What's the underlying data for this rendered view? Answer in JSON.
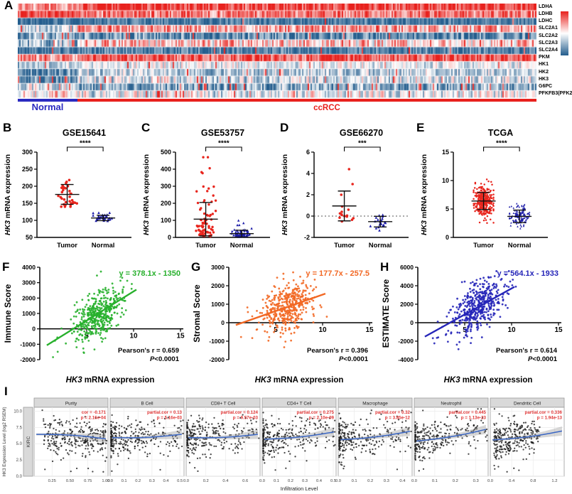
{
  "figure": {
    "letters": [
      "A",
      "B",
      "C",
      "D",
      "E",
      "F",
      "G",
      "H",
      "I"
    ]
  },
  "chart_data": [
    {
      "id": "heatmap",
      "type": "heatmap",
      "genes": [
        "LDHA",
        "LDHB",
        "LDHC",
        "SLC2A1",
        "SLC2A2",
        "SLC2A3",
        "SLC2A4",
        "PKM",
        "HK1",
        "HK2",
        "HK3",
        "G6PC",
        "PFKFB3(PFK2)"
      ],
      "scale": {
        "high": "#e8211d",
        "mid": "#ffffff",
        "low": "#235d8d"
      },
      "groups": [
        {
          "label": "Normal",
          "color": "#2a2ac0",
          "fraction": 0.115
        },
        {
          "label": "ccRCC",
          "color": "#e8211d",
          "fraction": 0.885
        }
      ],
      "rows": [
        {
          "gene": "LDHA",
          "normal": 0.5,
          "tumor": 0.85,
          "noise": 0.45,
          "spike": 0.01
        },
        {
          "gene": "LDHB",
          "normal": 0.9,
          "tumor": 0.6,
          "noise": 0.4,
          "spike": 0.02
        },
        {
          "gene": "LDHC",
          "normal": -0.85,
          "tumor": -0.82,
          "noise": 0.25,
          "spike": 0.01
        },
        {
          "gene": "SLC2A1",
          "normal": -0.25,
          "tumor": 0.4,
          "noise": 0.5,
          "spike": 0.04
        },
        {
          "gene": "SLC2A2",
          "normal": -0.55,
          "tumor": -0.7,
          "noise": 0.45,
          "spike": 0.03
        },
        {
          "gene": "SLC2A3",
          "normal": -0.35,
          "tumor": 0.25,
          "noise": 0.55,
          "spike": 0.05
        },
        {
          "gene": "SLC2A4",
          "normal": -0.85,
          "tumor": -0.8,
          "noise": 0.3,
          "spike": 0.015
        },
        {
          "gene": "PKM",
          "normal": 0.5,
          "tumor": 0.75,
          "noise": 0.4,
          "spike": 0.02
        },
        {
          "gene": "HK1",
          "normal": -0.3,
          "tumor": -0.12,
          "noise": 0.35,
          "spike": 0.02
        },
        {
          "gene": "HK2",
          "normal": -0.75,
          "tumor": -0.3,
          "noise": 0.45,
          "spike": 0.03
        },
        {
          "gene": "HK3",
          "normal": -0.75,
          "tumor": -0.2,
          "noise": 0.5,
          "spike": 0.04
        },
        {
          "gene": "G6PC",
          "normal": -0.15,
          "tumor": -0.55,
          "noise": 0.5,
          "spike": 0.07
        },
        {
          "gene": "PFKFB3(PFK2)",
          "normal": 0.15,
          "tumor": -0.1,
          "noise": 0.5,
          "spike": 0.04
        }
      ]
    },
    {
      "id": "B",
      "type": "scatter-dot",
      "title": "GSE15641",
      "ylabel_italic": "HK3",
      "ylabel_rest": " mRNA expression",
      "ymin": 50,
      "ymax": 300,
      "yticks": [
        50,
        100,
        150,
        200,
        250,
        300
      ],
      "sig": "****",
      "seed": 11,
      "jitter": 11,
      "radius": 1.8,
      "groups": [
        {
          "label": "Tumor",
          "color": "#e8251d",
          "marker": "circle",
          "dist": "normal",
          "mean": 176,
          "sd": 27,
          "min": 140,
          "max": 240,
          "n": 34,
          "err": {
            "mean": 176,
            "sd": 29
          }
        },
        {
          "label": "Normal",
          "color": "#1c1ca8",
          "marker": "triangle",
          "dist": "normal",
          "mean": 107,
          "sd": 7,
          "min": 92,
          "max": 122,
          "n": 34,
          "err": {
            "mean": 107,
            "sd": 8
          }
        }
      ]
    },
    {
      "id": "C",
      "type": "scatter-dot",
      "title": "GSE53757",
      "ylabel_italic": "HK3",
      "ylabel_rest": " mRNA expression",
      "ymin": 0,
      "ymax": 500,
      "yticks": [
        0,
        100,
        200,
        300,
        400,
        500
      ],
      "sig": "****",
      "seed": 12,
      "jitter": 12,
      "radius": 1.7,
      "groups": [
        {
          "label": "Tumor",
          "color": "#e8251d",
          "marker": "circle",
          "dist": "lognormal",
          "mu": 4.17,
          "sigma": 0.95,
          "min": 3,
          "max": 470,
          "n": 75,
          "err": {
            "mean": 107,
            "sd": 98
          }
        },
        {
          "label": "Normal",
          "color": "#1c1ca8",
          "marker": "triangle",
          "dist": "lognormal",
          "mu": 2.83,
          "sigma": 0.75,
          "min": 1,
          "max": 140,
          "n": 62,
          "err": {
            "mean": 22,
            "sd": 20
          }
        }
      ]
    },
    {
      "id": "D",
      "type": "scatter-dot",
      "title": "GSE66270",
      "ylabel_italic": "HK3",
      "ylabel_rest": " mRNA expression",
      "ymin": -2,
      "ymax": 6,
      "yticks": [
        -2,
        0,
        2,
        4,
        6
      ],
      "sig": "***",
      "seed": 13,
      "jitter": 9,
      "radius": 1.8,
      "zeroline": true,
      "groups": [
        {
          "label": "Tumor",
          "color": "#e8251d",
          "marker": "circle",
          "points": [
            -0.5,
            -0.35,
            -0.2,
            -0.15,
            -0.05,
            0,
            0.05,
            0.1,
            0.15,
            0.25,
            0.4,
            0.6,
            0.9,
            2.0,
            3.0,
            4.4
          ],
          "err": {
            "mean": 0.95,
            "sd": 1.4
          }
        },
        {
          "label": "Normal",
          "color": "#1c1ca8",
          "marker": "triangle",
          "points": [
            -1.35,
            -1.15,
            -1.05,
            -0.95,
            -0.9,
            -0.85,
            -0.8,
            -0.75,
            -0.7,
            -0.65,
            -0.6,
            -0.55,
            -0.5,
            -0.45,
            -0.4,
            -0.35,
            -0.25,
            -0.15,
            -0.05,
            0.05,
            0.1
          ],
          "err": {
            "mean": -0.52,
            "sd": 0.5
          }
        }
      ]
    },
    {
      "id": "E",
      "type": "scatter-dot",
      "title": "TCGA",
      "ylabel_italic": "HK3",
      "ylabel_rest": " mRNA expression",
      "ymin": 0,
      "ymax": 15,
      "yticks": [
        0,
        5,
        10,
        15
      ],
      "sig": "****",
      "seed": 14,
      "jitter": 13,
      "radius": 1.25,
      "groups": [
        {
          "label": "Tumor",
          "color": "#e8251d",
          "marker": "circle",
          "dist": "normal",
          "mean": 6.4,
          "sd": 1.4,
          "min": 0.4,
          "max": 10.2,
          "n": 300,
          "err": {
            "mean": 6.4,
            "sd": 1.5
          }
        },
        {
          "label": "Normal",
          "color": "#1c1ca8",
          "marker": "triangle",
          "dist": "normal",
          "mean": 3.7,
          "sd": 1.05,
          "min": 1.1,
          "max": 6.4,
          "n": 135,
          "err": {
            "mean": 3.7,
            "sd": 1.1
          }
        }
      ]
    },
    {
      "id": "F",
      "type": "scatter",
      "ylabel": "Immune Score",
      "xlabel_italic": "HK3",
      "xlabel_rest": " mRNA expression",
      "equation": "y = 378.1x - 1350",
      "slope": 378.1,
      "intercept": -1350,
      "pearson": "Pearson's r = 0.659",
      "p_italic": "P",
      "p_rest": "<0.0001",
      "color": "#27b02c",
      "ymin": -2000,
      "ymax": 4000,
      "yticks": [
        -2000,
        -1000,
        0,
        1000,
        2000,
        3000,
        4000
      ],
      "xticks": [
        5,
        10,
        15
      ],
      "xmax": 15,
      "n": 430,
      "resid": 780,
      "seed": 21
    },
    {
      "id": "G",
      "type": "scatter",
      "ylabel": "Stromal Score",
      "xlabel_italic": "HK3",
      "xlabel_rest": " mRNA expression",
      "equation": "y = 177.7x - 257.5",
      "slope": 177.7,
      "intercept": -257.5,
      "pearson": "Pearson's r = 0.396",
      "p_italic": "P",
      "p_rest": "<0.0001",
      "color": "#f26824",
      "ymin": -2000,
      "ymax": 3000,
      "yticks": [
        -2000,
        -1000,
        0,
        1000,
        2000,
        3000
      ],
      "xticks": [
        5,
        10,
        15
      ],
      "xmax": 15,
      "n": 430,
      "resid": 640,
      "seed": 22
    },
    {
      "id": "H",
      "type": "scatter",
      "ylabel": "ESTIMATE Score",
      "xlabel_italic": "HK3",
      "xlabel_rest": " mRNA expression",
      "equation": "y = 564.1x - 1933",
      "slope": 564.1,
      "intercept": -1933,
      "pearson": "Pearson's r = 0.614",
      "p_italic": "P",
      "p_rest": "<0.0001",
      "color": "#2525b8",
      "ymin": -4000,
      "ymax": 6000,
      "yticks": [
        -4000,
        -2000,
        0,
        2000,
        4000,
        6000
      ],
      "xticks": [
        5,
        10,
        15
      ],
      "xmax": 15,
      "n": 430,
      "resid": 1250,
      "seed": 23
    },
    {
      "id": "timer",
      "type": "facet-scatter",
      "ylabel": "HK3 Expression Level (log2 RSEM)",
      "xlabel": "Infiltration Level",
      "strip": "KIRC",
      "yticks": [
        "0.0",
        "2.5",
        "5.0",
        "7.5",
        "10.0"
      ],
      "point_color": "#1a1a1a",
      "line_color": "#3a66c4",
      "annot_color": "#e03434",
      "facets": [
        {
          "title": "Purity",
          "lines": [
            "cor = -0.171",
            "p = 2.16e-04"
          ],
          "cor": -0.171,
          "xdist": "spread",
          "xmax": 1.03,
          "xticks": [
            "0.25",
            "0.50",
            "0.75",
            "1.00"
          ]
        },
        {
          "title": "B Cell",
          "lines": [
            "partial.cor = 0.13",
            "p = 5.16e-03"
          ],
          "cor": 0.13,
          "xdist": "low",
          "xmax": 0.53,
          "xticks": [
            "0.0",
            "0.1",
            "0.2",
            "0.3",
            "0.4",
            "0.5"
          ]
        },
        {
          "title": "CD8+ T Cell",
          "lines": [
            "partial.cor = 0.124",
            "p = 9.57e-03"
          ],
          "cor": 0.124,
          "xdist": "low",
          "xmax": 0.75,
          "xticks": [
            "0.0",
            "0.2",
            "0.4",
            "0.6"
          ]
        },
        {
          "title": "CD4+ T Cell",
          "lines": [
            "partial.cor = 0.275",
            "p = 2.10e-09"
          ],
          "cor": 0.275,
          "xdist": "low",
          "xmax": 0.52,
          "xticks": [
            "0.0",
            "0.1",
            "0.2",
            "0.3",
            "0.4",
            "0.5"
          ]
        },
        {
          "title": "Macrophage",
          "lines": [
            "partial.cor = 0.32",
            "p = 3.85e-12"
          ],
          "cor": 0.32,
          "xdist": "low",
          "xmax": 0.46,
          "xticks": [
            "0.0",
            "0.1",
            "0.2",
            "0.3",
            "0.4"
          ]
        },
        {
          "title": "Neutrophil",
          "lines": [
            "partial.cor = 0.445",
            "p = 1.13e-23"
          ],
          "cor": 0.445,
          "xdist": "low",
          "xmax": 0.36,
          "xticks": [
            "0.0",
            "0.1",
            "0.2",
            "0.3"
          ]
        },
        {
          "title": "Dendritic Cell",
          "lines": [
            "partial.cor = 0.336",
            "p = 1.94e-13"
          ],
          "cor": 0.336,
          "xdist": "mid",
          "xmax": 1.38,
          "xticks": [
            "0.0",
            "0.4",
            "0.8",
            "1.2"
          ]
        }
      ]
    }
  ]
}
